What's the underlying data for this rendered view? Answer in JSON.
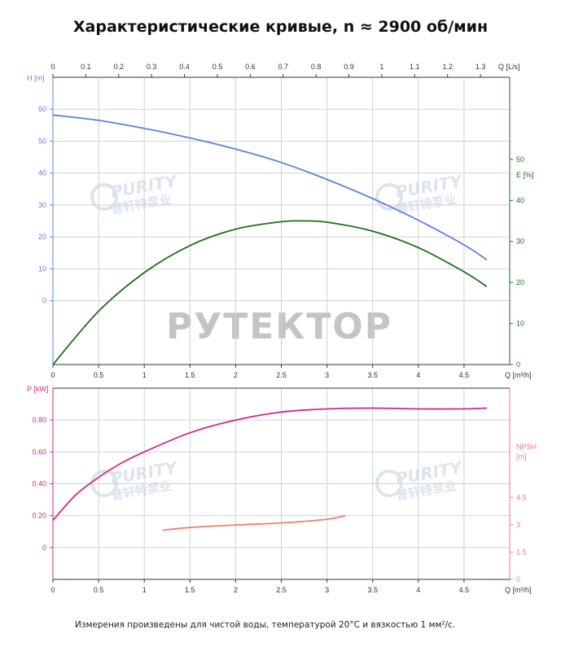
{
  "title": "Характеристические кривые, n ≈ 2900 об/мин",
  "footnote": "Измерения произведены для чистой воды, температурой 20°C и вязкостью 1 мм²/с.",
  "watermarks": {
    "main": "РУТЕКТОР",
    "brand": "PURITY",
    "brand_sub": "普轩特泵业"
  },
  "colors": {
    "head": "#5b84dc",
    "efficiency": "#1e6e1e",
    "power": "#cc2a8c",
    "npsh": "#f07e74",
    "grid": "#d2d2d2",
    "axis": "#333333",
    "text": "#333333"
  },
  "chart_data": [
    {
      "type": "line",
      "x_label": "Q [m³/h]",
      "x_top_label": "Q [L/s]",
      "xlim": [
        0,
        5
      ],
      "x_ticks": [
        0,
        0.5,
        1,
        1.5,
        2,
        2.5,
        3,
        3.5,
        4,
        4.5
      ],
      "x_tick_labels": [
        "0",
        "0.5",
        "1",
        "1.5",
        "2",
        "2.5",
        "3",
        "3.5",
        "4",
        "4.5"
      ],
      "x_top_ticks": [
        0,
        0.1,
        0.2,
        0.3,
        0.4,
        0.5,
        0.6,
        0.7,
        0.8,
        0.9,
        1,
        1.1,
        1.2,
        1.3
      ],
      "x_top_tick_labels": [
        "0",
        "0.1",
        "0.2",
        "0.3",
        "0.4",
        "0.5",
        "0.6",
        "0.7",
        "0.8",
        "0.9",
        "1",
        "1.1",
        "1.2",
        "1.3"
      ],
      "left_axis": {
        "label": "H [m]",
        "lim": [
          -20,
          70
        ],
        "ticks": [
          0,
          10,
          20,
          30,
          40,
          50,
          60
        ],
        "tick_labels": [
          "0",
          "10",
          "20",
          "30",
          "40",
          "50",
          "60"
        ]
      },
      "right_axis": {
        "label": "E [%]",
        "lim": [
          0,
          70
        ],
        "ticks": [
          0,
          10,
          20,
          30,
          40,
          50
        ],
        "tick_labels": [
          "0",
          "10",
          "20",
          "30",
          "40",
          "50"
        ]
      },
      "grid": true,
      "series": [
        {
          "axis": "left",
          "color": "#5b84dc",
          "x": [
            0,
            0.5,
            1,
            1.5,
            2,
            2.5,
            3,
            3.5,
            4,
            4.5,
            4.75
          ],
          "y": [
            58.2,
            56.5,
            54,
            51,
            47.5,
            43.3,
            38,
            32,
            25.2,
            17.5,
            12.8
          ]
        },
        {
          "axis": "right",
          "color": "#1e6e1e",
          "x": [
            0,
            0.5,
            1,
            1.5,
            2,
            2.5,
            2.75,
            3,
            3.5,
            4,
            4.5,
            4.75
          ],
          "y": [
            0,
            13,
            22.4,
            29,
            33,
            34.8,
            35,
            34.7,
            32.5,
            28.5,
            22.6,
            19
          ]
        }
      ]
    },
    {
      "type": "line",
      "x_label": "Q [m³/h]",
      "xlim": [
        0,
        5
      ],
      "x_ticks": [
        0,
        0.5,
        1,
        1.5,
        2,
        2.5,
        3,
        3.5,
        4,
        4.5
      ],
      "x_tick_labels": [
        "0",
        "0.5",
        "1",
        "1.5",
        "2",
        "2.5",
        "3",
        "3.5",
        "4",
        "4.5"
      ],
      "left_axis": {
        "label": "P [kW]",
        "lim": [
          -0.2,
          1
        ],
        "ticks": [
          0,
          0.2,
          0.4,
          0.6,
          0.8
        ],
        "tick_labels": [
          "0",
          "0.20",
          "0.40",
          "0.60",
          "0.80"
        ]
      },
      "right_axis": {
        "label": "NPSH\n[m]",
        "lim": [
          0,
          10.5
        ],
        "ticks": [
          0,
          1.5,
          3,
          4.5
        ],
        "tick_labels": [
          "0",
          "1.5",
          "3",
          "4.5"
        ]
      },
      "grid": true,
      "series": [
        {
          "axis": "left",
          "color": "#cc2a8c",
          "x": [
            0,
            0.25,
            0.5,
            0.75,
            1,
            1.5,
            2,
            2.5,
            3,
            3.5,
            4,
            4.5,
            4.75
          ],
          "y": [
            0.17,
            0.33,
            0.44,
            0.53,
            0.6,
            0.72,
            0.8,
            0.85,
            0.87,
            0.875,
            0.87,
            0.87,
            0.875
          ]
        },
        {
          "axis": "right",
          "color": "#f07e74",
          "x": [
            1.2,
            1.5,
            2,
            2.5,
            3,
            3.2
          ],
          "y": [
            2.7,
            2.85,
            2.99,
            3.1,
            3.3,
            3.5
          ]
        }
      ]
    }
  ]
}
